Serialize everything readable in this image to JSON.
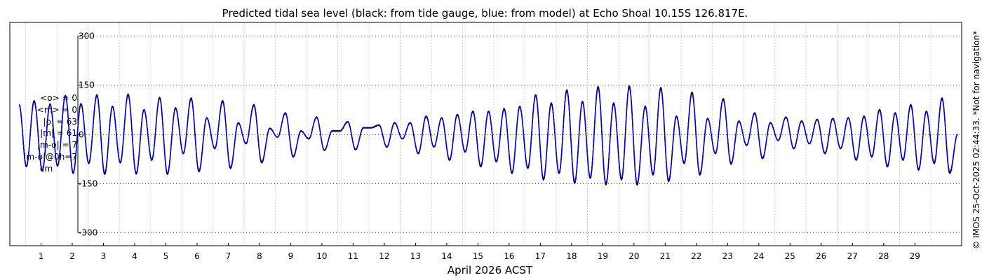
{
  "chart_data": {
    "type": "line",
    "title": "Predicted tidal sea level (black: from tide gauge, blue: from model) at Echo Shoal 10.15S 126.817E.",
    "xlabel": "April 2026 ACST",
    "ylabel": "",
    "xlim": [
      0,
      30.5
    ],
    "ylim": [
      -340,
      340
    ],
    "x_ticks": [
      1,
      2,
      3,
      4,
      5,
      6,
      7,
      8,
      9,
      10,
      11,
      12,
      13,
      14,
      15,
      16,
      17,
      18,
      19,
      20,
      21,
      22,
      23,
      24,
      25,
      26,
      27,
      28,
      29
    ],
    "y_ticks": [
      -300,
      -150,
      0,
      150,
      300
    ],
    "grid": true,
    "series": [
      {
        "name": "from tide gauge",
        "color": "#000000",
        "x": [
          0.3,
          0.53,
          0.78,
          1.04,
          1.29,
          1.53,
          1.78,
          2.03,
          2.28,
          2.53,
          2.79,
          3.04,
          3.29,
          3.54,
          3.79,
          4.05,
          4.3,
          4.55,
          4.8,
          5.05,
          5.31,
          5.56,
          5.81,
          6.06,
          6.31,
          6.57,
          6.82,
          7.07,
          7.32,
          7.57,
          7.82,
          8.07,
          8.33,
          8.58,
          8.83,
          9.08,
          9.33,
          9.58,
          9.83,
          10.08,
          10.33,
          10.58,
          10.83,
          11.08,
          11.33,
          11.58,
          11.83,
          12.08,
          12.33,
          12.58,
          12.83,
          13.09,
          13.34,
          13.59,
          13.84,
          14.09,
          14.34,
          14.59,
          14.84,
          15.09,
          15.34,
          15.59,
          15.84,
          16.09,
          16.34,
          16.6,
          16.85,
          17.1,
          17.35,
          17.6,
          17.85,
          18.1,
          18.35,
          18.6,
          18.85,
          19.1,
          19.35,
          19.6,
          19.85,
          20.1,
          20.36,
          20.61,
          20.86,
          21.11,
          21.36,
          21.61,
          21.86,
          22.11,
          22.36,
          22.61,
          22.86,
          23.11,
          23.36,
          23.61,
          23.87,
          24.12,
          24.37,
          24.62,
          24.87,
          25.12,
          25.37,
          25.62,
          25.87,
          26.12,
          26.37,
          26.62,
          26.87,
          27.12,
          27.37,
          27.62,
          27.87,
          28.12,
          28.37,
          28.62,
          28.87,
          29.12,
          29.37,
          29.62,
          29.87,
          30.12,
          30.37
        ],
        "values": [
          90,
          -100,
          102,
          -112,
          92,
          -98,
          118,
          -120,
          93,
          -90,
          120,
          -123,
          85,
          -88,
          122,
          -122,
          75,
          -80,
          112,
          -123,
          80,
          -60,
          110,
          -115,
          50,
          -45,
          102,
          -105,
          35,
          -30,
          90,
          -88,
          18,
          -10,
          65,
          -70,
          10,
          -15,
          52,
          -50,
          10,
          10,
          38,
          -48,
          20,
          20,
          28,
          -40,
          35,
          -15,
          35,
          -60,
          55,
          -40,
          50,
          -80,
          60,
          -55,
          70,
          -100,
          70,
          -85,
          78,
          -120,
          85,
          -105,
          120,
          -140,
          95,
          -120,
          135,
          -150,
          100,
          -135,
          145,
          -155,
          95,
          -140,
          147,
          -155,
          85,
          -125,
          142,
          -145,
          55,
          -90,
          128,
          -125,
          48,
          -60,
          108,
          -92,
          40,
          -35,
          65,
          -75,
          35,
          -20,
          52,
          -45,
          40,
          -30,
          45,
          -60,
          48,
          -45,
          50,
          -80,
          55,
          -70,
          75,
          -100,
          65,
          -80,
          90,
          -110,
          70,
          -90,
          110,
          -120,
          0
        ]
      },
      {
        "name": "from model",
        "color": "#0000ff",
        "x": [
          0.3,
          0.53,
          0.78,
          1.04,
          1.29,
          1.53,
          1.78,
          2.03,
          2.28,
          2.53,
          2.79,
          3.04,
          3.29,
          3.54,
          3.79,
          4.05,
          4.3,
          4.55,
          4.8,
          5.05,
          5.31,
          5.56,
          5.81,
          6.06,
          6.31,
          6.57,
          6.82,
          7.07,
          7.32,
          7.57,
          7.82,
          8.07,
          8.33,
          8.58,
          8.83,
          9.08,
          9.33,
          9.58,
          9.83,
          10.08,
          10.33,
          10.58,
          10.83,
          11.08,
          11.33,
          11.58,
          11.83,
          12.08,
          12.33,
          12.58,
          12.83,
          13.09,
          13.34,
          13.59,
          13.84,
          14.09,
          14.34,
          14.59,
          14.84,
          15.09,
          15.34,
          15.59,
          15.84,
          16.09,
          16.34,
          16.6,
          16.85,
          17.1,
          17.35,
          17.6,
          17.85,
          18.1,
          18.35,
          18.6,
          18.85,
          19.1,
          19.35,
          19.6,
          19.85,
          20.1,
          20.36,
          20.61,
          20.86,
          21.11,
          21.36,
          21.61,
          21.86,
          22.11,
          22.36,
          22.61,
          22.86,
          23.11,
          23.36,
          23.61,
          23.87,
          24.12,
          24.37,
          24.62,
          24.87,
          25.12,
          25.37,
          25.62,
          25.87,
          26.12,
          26.37,
          26.62,
          26.87,
          27.12,
          27.37,
          27.62,
          27.87,
          28.12,
          28.37,
          28.62,
          28.87,
          29.12,
          29.37,
          29.62,
          29.87,
          30.12,
          30.37
        ],
        "values": [
          88,
          -96,
          98,
          -108,
          90,
          -95,
          114,
          -116,
          90,
          -87,
          116,
          -118,
          82,
          -85,
          118,
          -118,
          73,
          -77,
          108,
          -119,
          77,
          -58,
          106,
          -111,
          48,
          -43,
          98,
          -101,
          33,
          -28,
          86,
          -84,
          16,
          -9,
          62,
          -67,
          8,
          -13,
          50,
          -48,
          8,
          8,
          36,
          -46,
          18,
          18,
          26,
          -38,
          33,
          -14,
          33,
          -57,
          52,
          -38,
          48,
          -77,
          57,
          -52,
          67,
          -96,
          67,
          -82,
          75,
          -116,
          82,
          -101,
          116,
          -135,
          91,
          -116,
          130,
          -144,
          96,
          -130,
          140,
          -149,
          91,
          -135,
          141,
          -149,
          82,
          -120,
          137,
          -140,
          52,
          -86,
          123,
          -120,
          46,
          -58,
          104,
          -88,
          38,
          -33,
          62,
          -72,
          33,
          -19,
          50,
          -43,
          38,
          -29,
          43,
          -57,
          46,
          -43,
          48,
          -77,
          52,
          -67,
          72,
          -96,
          62,
          -77,
          86,
          -106,
          67,
          -86,
          106,
          -115,
          0
        ]
      }
    ],
    "annotations": [
      "<o> = 0",
      "<m> = 0",
      "|o| = 63",
      "|m| = 61",
      "|m-o| = 7",
      "|m-o|@0h=7",
      "cm"
    ],
    "copyright": "© IMOS 25-Oct-2025 02:44:33. *Not for navigation*"
  }
}
